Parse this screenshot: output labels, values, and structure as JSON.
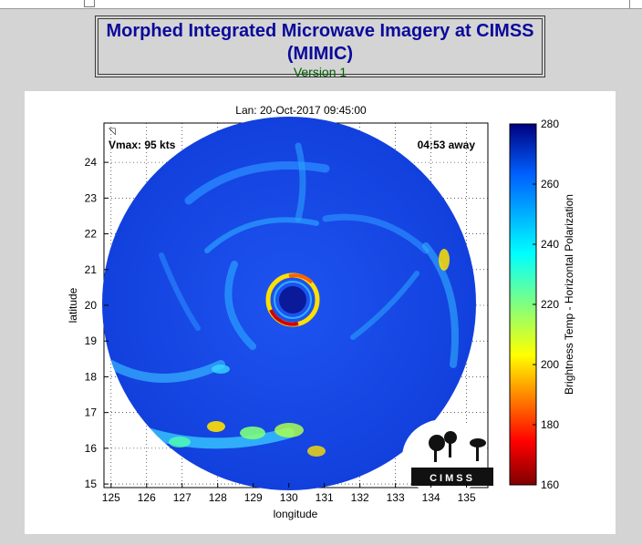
{
  "header": {
    "title_line1": "Morphed Integrated Microwave Imagery at CIMSS",
    "title_line2": "(MIMIC)",
    "version": "Version 1"
  },
  "chart": {
    "title": "Lan: 20-Oct-2017 09:45:00",
    "vmax_label": "Vmax: 95 kts",
    "away_label": "04:53 away",
    "xlabel": "longitude",
    "ylabel": "latitude",
    "colorbar_label": "Brightness Temp - Horizontal Polarization",
    "logo_text": "CIMSS"
  },
  "chart_data": {
    "type": "heatmap",
    "title": "Lan: 20-Oct-2017 09:45:00",
    "xlabel": "longitude",
    "ylabel": "latitude",
    "x_ticks": [
      125,
      126,
      127,
      128,
      129,
      130,
      131,
      132,
      133,
      134,
      135
    ],
    "y_ticks": [
      15,
      16,
      17,
      18,
      19,
      20,
      21,
      22,
      23,
      24
    ],
    "xlim": [
      124.8,
      135.6
    ],
    "ylim": [
      14.9,
      25.1
    ],
    "grid": true,
    "storm_center": {
      "lon": 130.2,
      "lat": 20.0
    },
    "colorbar": {
      "label": "Brightness Temp - Horizontal Polarization",
      "ticks": [
        160,
        180,
        200,
        220,
        240,
        260,
        280
      ],
      "range": [
        160,
        280
      ]
    },
    "annotations": [
      "Vmax: 95 kts",
      "04:53 away"
    ]
  }
}
